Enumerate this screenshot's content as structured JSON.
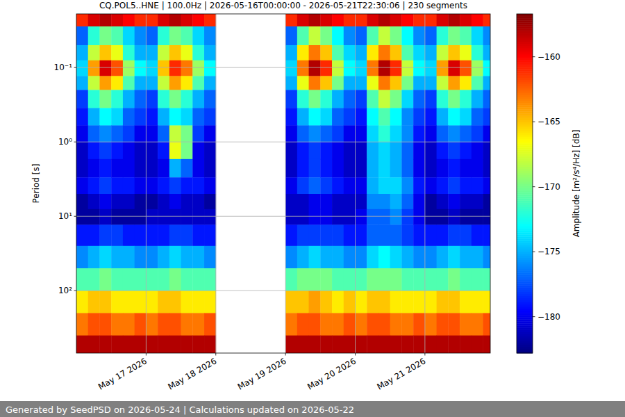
{
  "chart_data": {
    "type": "heatmap",
    "title": "CQ.POL5..HNE | 100.0Hz | 2026-05-16T00:00:00 - 2026-05-21T22:30:06 | 230 segments",
    "y_label": "Period [s]",
    "colorbar_label": "Amplitude [m²/s⁴/Hz] [dB]",
    "footer": "Generated by SeedPSD on 2026-05-24 | Calculations updated on 2026-05-22",
    "log": "y",
    "grid": true,
    "xlim": [
      "2026-05-16T00:00:00",
      "2026-05-21T22:30:06"
    ],
    "xticks": [
      {
        "value": "2026-05-17",
        "label": "May 17 2026"
      },
      {
        "value": "2026-05-18",
        "label": "May 18 2026"
      },
      {
        "value": "2026-05-19",
        "label": "May 19 2026"
      },
      {
        "value": "2026-05-20",
        "label": "May 20 2026"
      },
      {
        "value": "2026-05-21",
        "label": "May 21 2026"
      }
    ],
    "ylim": [
      0.019,
      690
    ],
    "yticks": [
      {
        "value": 0.1,
        "label": "10⁻¹"
      },
      {
        "value": 1,
        "label": "10⁰"
      },
      {
        "value": 10,
        "label": "10¹"
      },
      {
        "value": 100,
        "label": "10²"
      }
    ],
    "x_edges": [
      "2026-05-16T00:00",
      "2026-05-16T04:00",
      "2026-05-16T08:00",
      "2026-05-16T12:00",
      "2026-05-16T16:00",
      "2026-05-16T20:00",
      "2026-05-17T00:00",
      "2026-05-17T04:00",
      "2026-05-17T08:00",
      "2026-05-17T12:00",
      "2026-05-17T16:00",
      "2026-05-17T20:00",
      "2026-05-18T00:00",
      "2026-05-18T04:00",
      "2026-05-18T08:00",
      "2026-05-18T12:00",
      "2026-05-18T16:00",
      "2026-05-18T20:00",
      "2026-05-19T00:00",
      "2026-05-19T04:00",
      "2026-05-19T08:00",
      "2026-05-19T12:00",
      "2026-05-19T16:00",
      "2026-05-19T20:00",
      "2026-05-20T00:00",
      "2026-05-20T04:00",
      "2026-05-20T08:00",
      "2026-05-20T12:00",
      "2026-05-20T16:00",
      "2026-05-20T20:00",
      "2026-05-21T00:00",
      "2026-05-21T04:00",
      "2026-05-21T08:00",
      "2026-05-21T12:00",
      "2026-05-21T16:00",
      "2026-05-21T20:00",
      "2026-05-22T00:00"
    ],
    "y_edges": [
      0.019,
      0.028,
      0.05,
      0.08,
      0.13,
      0.2,
      0.35,
      0.6,
      1,
      1.7,
      3,
      5,
      8,
      13,
      25,
      50,
      100,
      200,
      400,
      690
    ],
    "z": [
      [
        -161,
        -159,
        -158,
        -159,
        -160,
        -161,
        -161,
        -159,
        -158,
        -159,
        -160,
        -161,
        null,
        null,
        null,
        null,
        null,
        null,
        -161,
        -159,
        -158,
        -159,
        -160,
        -161,
        -161,
        -159,
        -158,
        -159,
        -160,
        -161,
        -161,
        -159,
        -158,
        -159,
        -160,
        -161
      ],
      [
        -177,
        -172,
        -170,
        -171,
        -174,
        -176,
        -177,
        -172,
        -170,
        -171,
        -174,
        -176,
        null,
        null,
        null,
        null,
        null,
        null,
        -177,
        -171,
        -168,
        -170,
        -173,
        -176,
        -177,
        -171,
        -168,
        -170,
        -173,
        -176,
        -177,
        -172,
        -170,
        -171,
        -174,
        -176
      ],
      [
        -175,
        -168,
        -165,
        -167,
        -172,
        -175,
        -175,
        -168,
        -165,
        -167,
        -172,
        -175,
        null,
        null,
        null,
        null,
        null,
        null,
        -175,
        -166,
        -163,
        -165,
        -171,
        -174,
        -175,
        -166,
        -163,
        -165,
        -171,
        -174,
        -175,
        -168,
        -165,
        -167,
        -172,
        -175
      ],
      [
        -174,
        -164,
        -159,
        -162,
        -169,
        -173,
        -174,
        -165,
        -161,
        -163,
        -169,
        -173,
        null,
        null,
        null,
        null,
        null,
        null,
        -174,
        -163,
        -158,
        -161,
        -168,
        -173,
        -174,
        -163,
        -158,
        -161,
        -168,
        -173,
        -174,
        -164,
        -159,
        -162,
        -169,
        -173
      ],
      [
        -175,
        -168,
        -164,
        -166,
        -171,
        -175,
        -175,
        -168,
        -164,
        -166,
        -171,
        -175,
        null,
        null,
        null,
        null,
        null,
        null,
        -175,
        -167,
        -163,
        -165,
        -170,
        -175,
        -175,
        -167,
        -163,
        -165,
        -170,
        -175,
        -175,
        -168,
        -164,
        -166,
        -171,
        -175
      ],
      [
        -178,
        -172,
        -170,
        -172,
        -175,
        -177,
        -178,
        -172,
        -170,
        -172,
        -175,
        -177,
        null,
        null,
        null,
        null,
        null,
        null,
        -178,
        -172,
        -170,
        -172,
        -175,
        -177,
        -178,
        -171,
        -168,
        -170,
        -174,
        -177,
        -178,
        -172,
        -170,
        -172,
        -175,
        -177
      ],
      [
        -179,
        -175,
        -173,
        -174,
        -177,
        -178,
        -179,
        -175,
        -173,
        -174,
        -177,
        -178,
        null,
        null,
        null,
        null,
        null,
        null,
        -179,
        -175,
        -173,
        -174,
        -177,
        -178,
        -179,
        -173,
        -171,
        -173,
        -176,
        -178,
        -179,
        -175,
        -173,
        -174,
        -177,
        -178
      ],
      [
        -180,
        -177,
        -176,
        -177,
        -178,
        -180,
        -180,
        -177,
        -168,
        -170,
        -178,
        -180,
        null,
        null,
        null,
        null,
        null,
        null,
        -180,
        -177,
        -176,
        -177,
        -178,
        -180,
        -180,
        -174,
        -172,
        -174,
        -176,
        -179,
        -180,
        -177,
        -176,
        -177,
        -178,
        -180
      ],
      [
        -181,
        -179,
        -178,
        -179,
        -180,
        -181,
        -181,
        -179,
        -167,
        -170,
        -180,
        -181,
        null,
        null,
        null,
        null,
        null,
        null,
        -181,
        -179,
        -178,
        -179,
        -180,
        -181,
        -181,
        -175,
        -174,
        -175,
        -177,
        -180,
        -181,
        -179,
        -178,
        -179,
        -180,
        -181
      ],
      [
        -181,
        -180,
        -179,
        -180,
        -180,
        -181,
        -181,
        -180,
        -175,
        -177,
        -180,
        -181,
        null,
        null,
        null,
        null,
        null,
        null,
        -181,
        -179,
        -178,
        -179,
        -180,
        -181,
        -181,
        -175,
        -174,
        -175,
        -177,
        -180,
        -181,
        -180,
        -179,
        -180,
        -180,
        -181
      ],
      [
        -180,
        -179,
        -178,
        -179,
        -179,
        -180,
        -180,
        -179,
        -178,
        -179,
        -179,
        -180,
        null,
        null,
        null,
        null,
        null,
        null,
        -180,
        -178,
        -177,
        -178,
        -179,
        -180,
        -180,
        -175,
        -174,
        -174,
        -176,
        -179,
        -180,
        -179,
        -178,
        -179,
        -179,
        -180
      ],
      [
        -182,
        -181,
        -180,
        -181,
        -181,
        -182,
        -182,
        -181,
        -180,
        -181,
        -181,
        -182,
        null,
        null,
        null,
        null,
        null,
        null,
        -181,
        -181,
        -180,
        -180,
        -181,
        -181,
        -181,
        -176,
        -176,
        -175,
        -177,
        -180,
        -182,
        -181,
        -180,
        -181,
        -181,
        -182
      ],
      [
        -182,
        -182,
        -181,
        -182,
        -182,
        -182,
        -181,
        -181,
        -181,
        -181,
        -181,
        -181,
        null,
        null,
        null,
        null,
        null,
        null,
        -181,
        -181,
        -180,
        -180,
        -181,
        -181,
        -180,
        -177,
        -177,
        -176,
        -178,
        -180,
        -182,
        -182,
        -181,
        -182,
        -182,
        -182
      ],
      [
        -179,
        -179,
        -178,
        -178,
        -179,
        -179,
        -179,
        -179,
        -178,
        -178,
        -179,
        -179,
        null,
        null,
        null,
        null,
        null,
        null,
        -179,
        -178,
        -178,
        -178,
        -178,
        -179,
        -179,
        -177,
        -177,
        -177,
        -178,
        -179,
        -179,
        -179,
        -178,
        -178,
        -179,
        -179
      ],
      [
        -176,
        -175,
        -174,
        -175,
        -175,
        -176,
        -176,
        -175,
        -174,
        -175,
        -175,
        -176,
        null,
        null,
        null,
        null,
        null,
        null,
        -176,
        -175,
        -174,
        -175,
        -175,
        -176,
        -176,
        -174,
        -173,
        -174,
        -175,
        -176,
        -176,
        -175,
        -174,
        -175,
        -175,
        -176
      ],
      [
        -171,
        -171,
        -170,
        -171,
        -171,
        -171,
        -171,
        -171,
        -170,
        -171,
        -171,
        -171,
        null,
        null,
        null,
        null,
        null,
        null,
        -171,
        -170,
        -170,
        -170,
        -171,
        -171,
        -171,
        -170,
        -170,
        -170,
        -171,
        -171,
        -171,
        -171,
        -170,
        -171,
        -171,
        -171
      ],
      [
        -166,
        -165,
        -165,
        -166,
        -166,
        -166,
        -166,
        -165,
        -165,
        -166,
        -166,
        -166,
        null,
        null,
        null,
        null,
        null,
        null,
        -165,
        -165,
        -164,
        -165,
        -166,
        -165,
        -166,
        -165,
        -165,
        -166,
        -166,
        -166,
        -166,
        -165,
        -165,
        -166,
        -166,
        -166
      ],
      [
        -163,
        -162,
        -162,
        -163,
        -163,
        -162,
        -163,
        -162,
        -162,
        -163,
        -163,
        -162,
        null,
        null,
        null,
        null,
        null,
        null,
        -163,
        -162,
        -162,
        -163,
        -163,
        -162,
        -163,
        -162,
        -162,
        -163,
        -163,
        -162,
        -163,
        -162,
        -162,
        -163,
        -163,
        -162
      ],
      [
        -158,
        -158,
        -158,
        -158,
        -158,
        -158,
        -158,
        -158,
        -158,
        -158,
        -158,
        -158,
        null,
        null,
        null,
        null,
        null,
        null,
        -158,
        -158,
        -158,
        -158,
        -158,
        -158,
        -158,
        -158,
        -158,
        -158,
        -158,
        -158,
        -158,
        -158,
        -158,
        -158,
        -158,
        -158
      ]
    ],
    "colorbar_lim": [
      -182.8,
      -156.7
    ],
    "colorbar_ticks": [
      {
        "value": -180,
        "label": "−180"
      },
      {
        "value": -175,
        "label": "−175"
      },
      {
        "value": -170,
        "label": "−170"
      },
      {
        "value": -165,
        "label": "−165"
      },
      {
        "value": -160,
        "label": "−160"
      }
    ]
  }
}
